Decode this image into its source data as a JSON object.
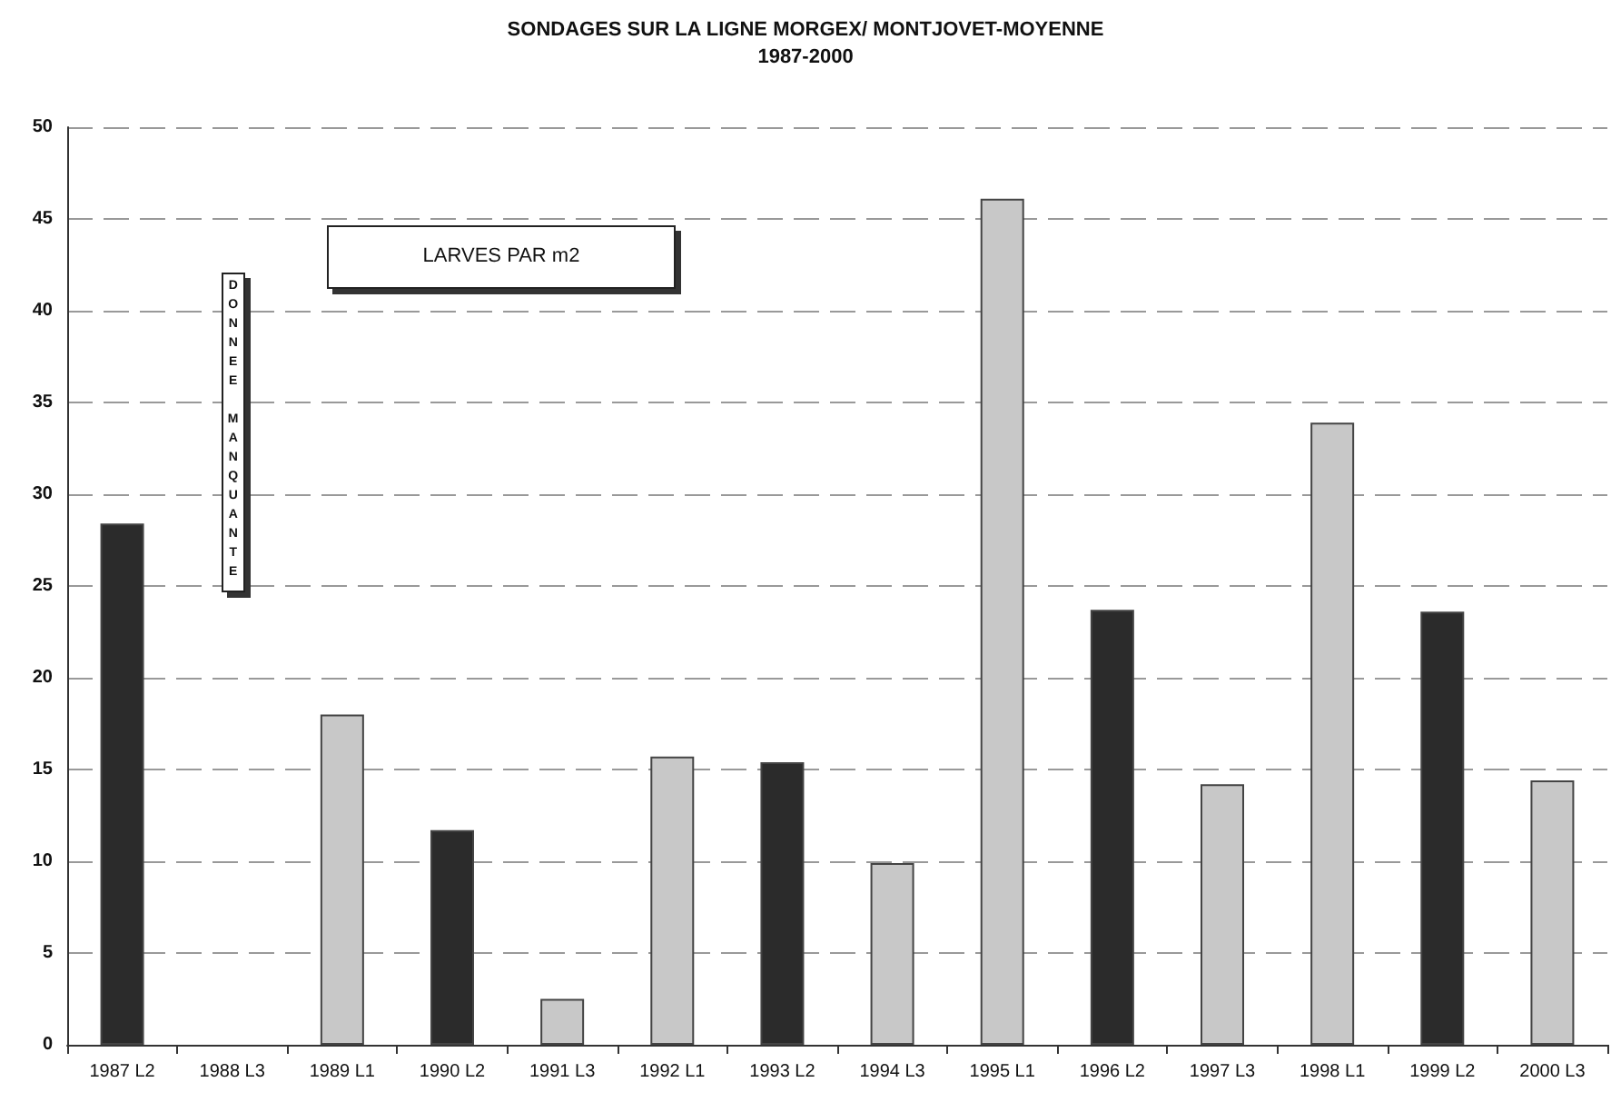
{
  "chart_data": {
    "type": "bar",
    "title": "SONDAGES SUR LA LIGNE MORGEX/ MONTJOVET-MOYENNE",
    "subtitle": "1987-2000",
    "categories": [
      "1987 L2",
      "1988 L3",
      "1989 L1",
      "1990 L2",
      "1991 L3",
      "1992 L1",
      "1993 L2",
      "1994 L3",
      "1995 L1",
      "1996 L2",
      "1997 L3",
      "1998 L1",
      "1999 L2",
      "2000 L3"
    ],
    "values": [
      28.4,
      null,
      18,
      11.7,
      2.5,
      15.7,
      15.4,
      9.9,
      46.1,
      23.7,
      14.2,
      33.9,
      23.6,
      14.4
    ],
    "colors": [
      "#2b2b2b",
      "#c8c8c8",
      "#c8c8c8",
      "#2b2b2b",
      "#c8c8c8",
      "#c8c8c8",
      "#2b2b2b",
      "#c8c8c8",
      "#c8c8c8",
      "#2b2b2b",
      "#c8c8c8",
      "#c8c8c8",
      "#2b2b2b",
      "#c8c8c8"
    ],
    "ylim": [
      0,
      50
    ],
    "yticks": [
      0,
      5,
      10,
      15,
      20,
      25,
      30,
      35,
      40,
      45,
      50
    ],
    "grid": "y",
    "annotations": [
      "LARVES PAR m2",
      "DONNEE MANQUANTE"
    ]
  }
}
